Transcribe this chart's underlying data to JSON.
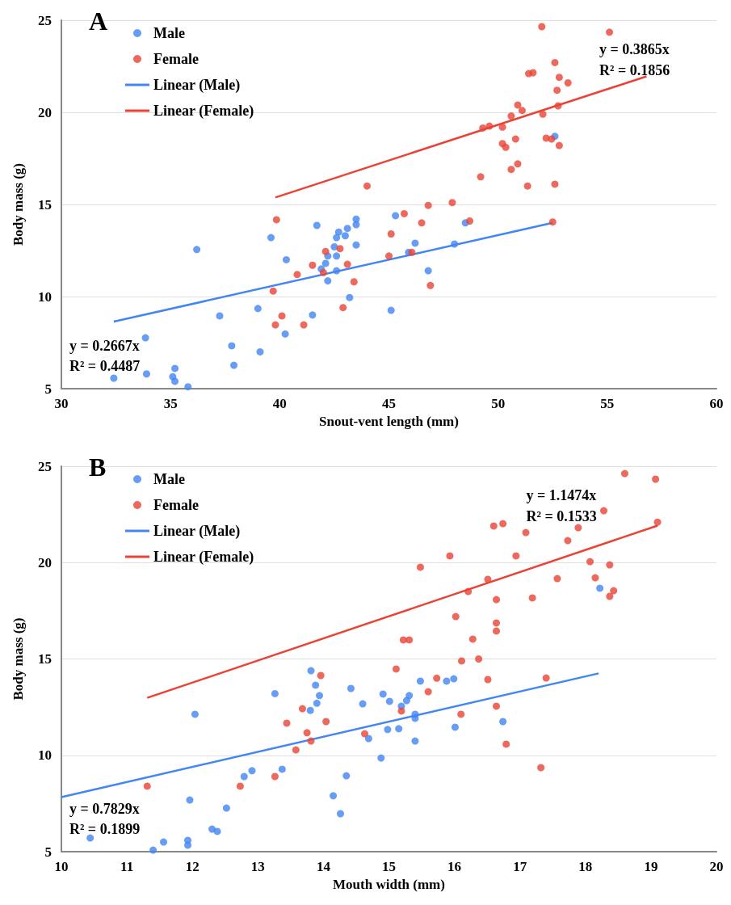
{
  "chart_data": [
    {
      "type": "scatter",
      "title": "A",
      "xlabel": "Snout-vent length (mm)",
      "ylabel": "Body mass (g)",
      "xlim": [
        30,
        60
      ],
      "xticks": [
        30,
        35,
        40,
        45,
        50,
        55,
        60
      ],
      "ylim": [
        5,
        25
      ],
      "yticks": [
        5,
        10,
        15,
        20,
        25
      ],
      "grid": "y",
      "legend": "top left",
      "series": [
        {
          "name": "Male",
          "marker": "circle",
          "color": "#4285f4",
          "x": [
            36.2,
            39.6,
            40.3,
            41.7,
            43.5,
            43.5,
            43.1,
            42.7,
            42.6,
            43.0,
            42.5,
            43.5,
            42.2,
            42.6,
            42.1,
            41.9,
            42.6,
            42.2,
            43.2,
            39.0,
            37.25,
            41.5,
            40.25,
            37.8,
            39.1,
            37.9,
            33.85,
            35.2,
            33.9,
            35.1,
            32.4,
            35.2,
            35.8,
            45.3,
            48.5,
            46.2,
            45.9,
            48.0,
            46.8,
            45.1,
            52.6
          ],
          "values": [
            12.55,
            13.2,
            12.0,
            13.86,
            14.2,
            13.9,
            13.7,
            13.5,
            13.2,
            13.3,
            12.7,
            12.8,
            12.2,
            12.2,
            11.8,
            11.5,
            11.4,
            10.85,
            9.95,
            9.35,
            8.95,
            9.0,
            7.97,
            7.33,
            7.0,
            6.27,
            7.76,
            6.1,
            5.8,
            5.65,
            5.57,
            5.4,
            5.1,
            14.39,
            14.0,
            12.9,
            12.4,
            12.85,
            11.4,
            9.25,
            18.7
          ]
        },
        {
          "name": "Female",
          "marker": "circle",
          "color": "#ea4335",
          "x": [
            44.0,
            39.85,
            42.76,
            42.1,
            41.5,
            43.1,
            40.8,
            42.0,
            43.4,
            39.7,
            40.1,
            39.8,
            41.1,
            42.9,
            45.0,
            52.0,
            55.1,
            52.6,
            51.4,
            51.6,
            52.8,
            53.2,
            52.7,
            52.75,
            50.9,
            51.1,
            52.05,
            50.6,
            49.3,
            49.6,
            50.2,
            50.8,
            50.2,
            50.35,
            52.2,
            52.45,
            52.8,
            50.9,
            50.6,
            49.2,
            51.35,
            52.6,
            46.8,
            47.9,
            45.7,
            46.5,
            48.7,
            45.1,
            46.05,
            46.9,
            52.5
          ],
          "values": [
            16.0,
            14.17,
            12.6,
            12.45,
            11.7,
            11.75,
            11.2,
            11.3,
            10.8,
            10.3,
            8.95,
            8.46,
            8.46,
            9.4,
            12.2,
            24.65,
            24.35,
            22.7,
            22.1,
            22.15,
            21.9,
            21.6,
            21.2,
            20.35,
            20.4,
            20.1,
            19.9,
            19.8,
            19.15,
            19.25,
            19.2,
            18.55,
            18.3,
            18.1,
            18.6,
            18.55,
            18.2,
            17.2,
            16.9,
            16.5,
            16.0,
            16.1,
            14.95,
            15.1,
            14.5,
            14.0,
            14.1,
            13.4,
            12.4,
            10.6,
            14.05
          ]
        },
        {
          "name": "Linear (Male)",
          "type": "line",
          "marker": "none",
          "color": "#4285f4",
          "x": [
            32.4,
            52.5
          ],
          "values": [
            8.64,
            14.0
          ]
        },
        {
          "name": "Linear (Female)",
          "type": "line",
          "marker": "none",
          "color": "#ea4335",
          "x": [
            39.8,
            56.8
          ],
          "values": [
            15.38,
            21.95
          ]
        }
      ],
      "annotations": [
        "y = 0.2667x",
        "R² = 0.4487",
        "y = 0.3865x",
        "R² = 0.1856"
      ]
    },
    {
      "type": "scatter",
      "title": "B",
      "xlabel": "Mouth width (mm)",
      "ylabel": "Body mass (g)",
      "xlim": [
        10,
        20
      ],
      "xticks": [
        10,
        11,
        12,
        13,
        14,
        15,
        16,
        17,
        18,
        19,
        20
      ],
      "ylim": [
        5,
        25
      ],
      "yticks": [
        5,
        10,
        15,
        20,
        25
      ],
      "grid": "y",
      "legend": "top left",
      "series": [
        {
          "name": "Male",
          "marker": "circle",
          "color": "#4285f4",
          "x": [
            13.81,
            13.88,
            13.94,
            13.9,
            13.8,
            13.26,
            12.04,
            14.42,
            14.6,
            14.91,
            14.69,
            14.88,
            14.35,
            13.37,
            12.91,
            12.79,
            14.15,
            14.26,
            11.96,
            12.52,
            12.3,
            12.38,
            10.44,
            11.56,
            11.93,
            11.93,
            11.4,
            18.22,
            15.48,
            15.88,
            15.99,
            15.01,
            15.31,
            15.27,
            15.19,
            15.4,
            15.4,
            14.98,
            15.15,
            15.4,
            16.01,
            16.74
          ],
          "values": [
            14.39,
            13.64,
            13.1,
            12.7,
            12.33,
            13.2,
            12.13,
            13.47,
            12.67,
            13.18,
            10.87,
            9.86,
            8.94,
            9.28,
            9.2,
            8.9,
            7.9,
            6.97,
            7.68,
            7.26,
            6.17,
            6.05,
            5.71,
            5.5,
            5.59,
            5.34,
            5.08,
            18.67,
            13.85,
            13.85,
            13.97,
            12.8,
            13.1,
            12.84,
            12.55,
            12.13,
            11.92,
            11.34,
            11.38,
            10.74,
            11.46,
            11.75
          ]
        },
        {
          "name": "Female",
          "marker": "circle",
          "color": "#ea4335",
          "x": [
            13.96,
            13.68,
            13.44,
            14.04,
            13.75,
            13.81,
            13.58,
            14.63,
            13.26,
            12.73,
            11.31,
            18.6,
            19.07,
            18.28,
            19.1,
            16.6,
            16.74,
            17.09,
            17.89,
            17.73,
            15.93,
            16.94,
            15.48,
            18.07,
            18.37,
            18.15,
            17.57,
            16.51,
            16.21,
            18.43,
            18.37,
            16.64,
            17.19,
            16.02,
            16.64,
            16.64,
            16.28,
            15.22,
            15.31,
            16.37,
            16.11,
            15.11,
            15.73,
            16.51,
            17.4,
            15.6,
            15.19,
            16.64,
            16.1,
            16.79,
            17.32
          ],
          "values": [
            14.14,
            12.42,
            11.67,
            11.75,
            11.17,
            10.74,
            10.28,
            11.12,
            8.9,
            8.4,
            8.4,
            24.62,
            24.33,
            22.69,
            22.1,
            21.9,
            22.02,
            21.56,
            21.81,
            21.14,
            20.35,
            20.35,
            19.76,
            20.05,
            19.88,
            19.21,
            19.17,
            19.13,
            18.5,
            18.54,
            18.25,
            18.08,
            18.17,
            17.2,
            16.87,
            16.45,
            16.03,
            15.99,
            15.99,
            15.0,
            14.9,
            14.48,
            14.0,
            13.93,
            14.01,
            13.3,
            12.3,
            12.55,
            12.13,
            10.58,
            9.36
          ]
        },
        {
          "name": "Linear (Male)",
          "type": "line",
          "marker": "none",
          "color": "#4285f4",
          "x": [
            10,
            18.2
          ],
          "values": [
            7.83,
            14.25
          ]
        },
        {
          "name": "Linear (Female)",
          "type": "line",
          "marker": "none",
          "color": "#ea4335",
          "x": [
            11.31,
            19.1
          ],
          "values": [
            12.98,
            21.92
          ]
        }
      ],
      "annotations": [
        "y = 0.7829x",
        "R² = 0.1899",
        "y = 1.1474x",
        "R² = 0.1533"
      ]
    }
  ]
}
